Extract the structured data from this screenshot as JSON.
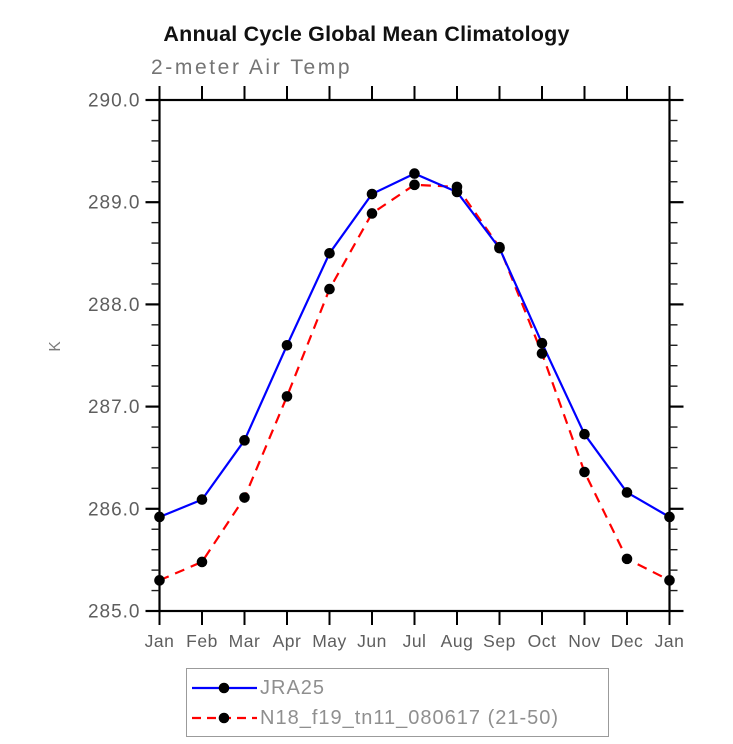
{
  "title": "Annual Cycle Global Mean Climatology",
  "subtitle": "2-meter Air Temp",
  "chart_data": {
    "type": "line",
    "x_categories": [
      "Jan",
      "Feb",
      "Mar",
      "Apr",
      "May",
      "Jun",
      "Jul",
      "Aug",
      "Sep",
      "Oct",
      "Nov",
      "Dec",
      "Jan"
    ],
    "ylabel": "K",
    "ylim": [
      285.0,
      290.0
    ],
    "y_major_ticks": [
      "290.0",
      "289.0",
      "288.0",
      "287.0",
      "286.0",
      "285.0"
    ],
    "y_minor_step": 0.2,
    "grid": false,
    "legend_position": "bottom",
    "marker": "black-dot",
    "series": [
      {
        "name": "JRA25",
        "color": "#0000ff",
        "style": "solid",
        "values": [
          285.92,
          286.09,
          286.67,
          287.6,
          288.5,
          289.08,
          289.28,
          289.1,
          288.55,
          287.62,
          286.73,
          286.16,
          285.92
        ]
      },
      {
        "name": "N18_f19_tn11_080617 (21-50)",
        "color": "#ff0000",
        "style": "dashed",
        "values": [
          285.3,
          285.48,
          286.11,
          287.1,
          288.15,
          288.89,
          289.17,
          289.15,
          288.56,
          287.52,
          286.36,
          285.51,
          285.3
        ]
      }
    ]
  },
  "colors": {
    "frame": "#000000",
    "marker": "#000000",
    "tick_label": "#5e5e5e",
    "subtitle_text": "#747474",
    "legend_text": "#8f8f8f",
    "legend_border": "#9b9b9b"
  }
}
